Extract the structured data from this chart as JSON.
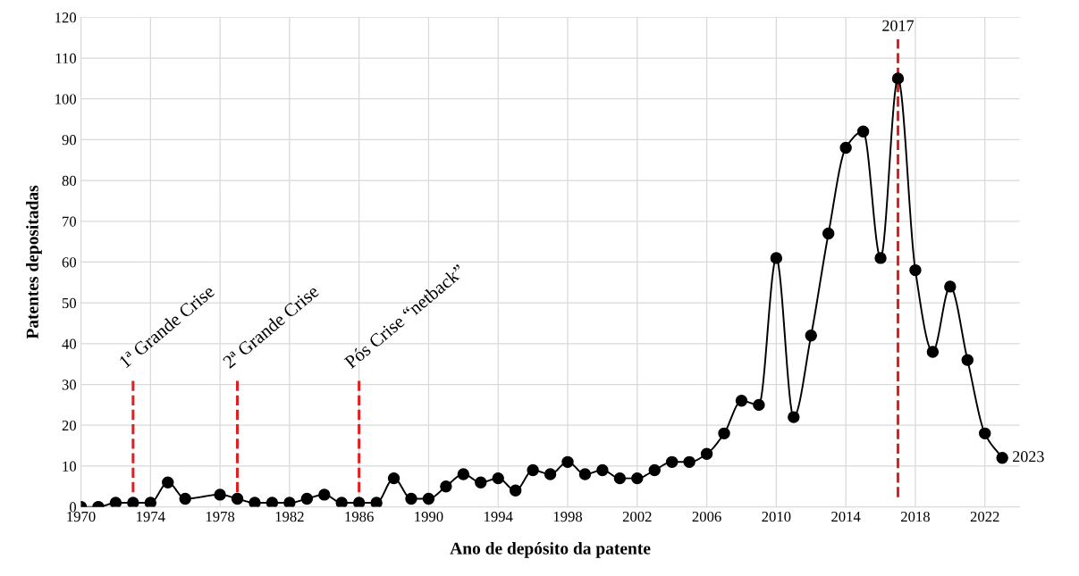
{
  "chart_data": {
    "type": "line",
    "xlabel": "Ano de depósito da patente",
    "ylabel": "Patentes depositadas",
    "x": [
      1970,
      1971,
      1972,
      1973,
      1974,
      1975,
      1976,
      1978,
      1979,
      1980,
      1981,
      1982,
      1983,
      1984,
      1985,
      1986,
      1987,
      1988,
      1989,
      1990,
      1991,
      1992,
      1993,
      1994,
      1995,
      1996,
      1997,
      1998,
      1999,
      2000,
      2001,
      2002,
      2003,
      2004,
      2005,
      2006,
      2007,
      2008,
      2009,
      2010,
      2011,
      2012,
      2013,
      2014,
      2015,
      2016,
      2017,
      2018,
      2019,
      2020,
      2021,
      2022,
      2023
    ],
    "series": [
      {
        "color": "#000000",
        "values": [
          0,
          0,
          1,
          1,
          1,
          6,
          2,
          3,
          2,
          1,
          1,
          1,
          2,
          3,
          1,
          1,
          1,
          7,
          2,
          2,
          5,
          8,
          6,
          7,
          4,
          9,
          8,
          11,
          8,
          9,
          7,
          7,
          9,
          11,
          11,
          13,
          18,
          26,
          25,
          61,
          22,
          42,
          67,
          88,
          92,
          61,
          105,
          58,
          38,
          54,
          36,
          18,
          12
        ]
      }
    ],
    "xlim": [
      1970,
      2024
    ],
    "xticks": [
      1970,
      1974,
      1978,
      1982,
      1986,
      1990,
      1994,
      1998,
      2002,
      2006,
      2010,
      2014,
      2018,
      2022
    ],
    "ylim": [
      0,
      120
    ],
    "yticks": [
      0,
      10,
      20,
      30,
      40,
      50,
      60,
      70,
      80,
      90,
      100,
      110,
      120
    ],
    "grid": true,
    "marker": "circle",
    "line_style": "solid",
    "ref_lines": [
      {
        "axis": "x",
        "value": 1973,
        "label": "1ª Grande Crise",
        "color": "#e02020",
        "line_style": "dashed"
      },
      {
        "axis": "x",
        "value": 1979,
        "label": "2ª Grande Crise",
        "color": "#e02020",
        "line_style": "dashed"
      },
      {
        "axis": "x",
        "value": 1986,
        "label": "Pós Crise “netback”",
        "color": "#e02020",
        "line_style": "dashed"
      },
      {
        "axis": "x",
        "value": 2017,
        "label": "2017",
        "color": "#e02020",
        "line_style": "dashed"
      }
    ],
    "annotations": [
      {
        "text": "2023",
        "x": 2023,
        "y": 12
      }
    ]
  }
}
